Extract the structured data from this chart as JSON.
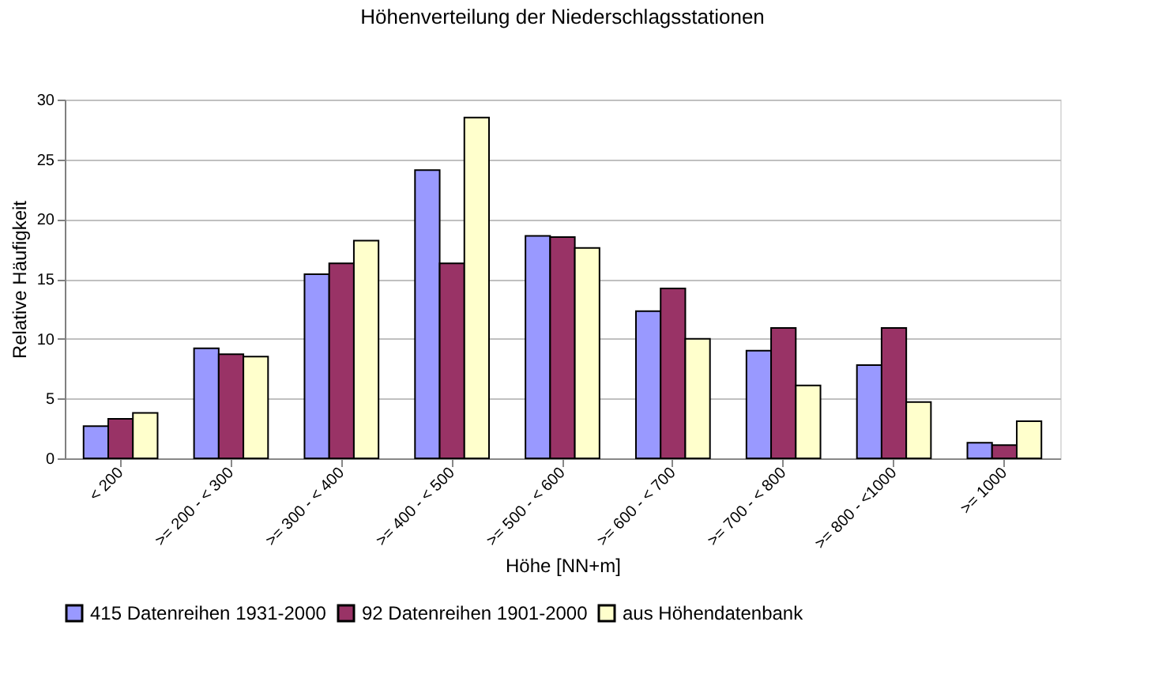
{
  "chart_data": {
    "type": "bar",
    "title": "Höhenverteilung der Niederschlagsstationen",
    "xlabel": "Höhe [NN+m]",
    "ylabel": "Relative Häufigkeit",
    "categories": [
      "< 200",
      ">= 200 - < 300",
      ">= 300 - < 400",
      ">= 400 - < 500",
      ">= 500 - < 600",
      ">= 600 - < 700",
      ">= 700 - < 800",
      ">= 800 - <1000",
      ">= 1000"
    ],
    "series": [
      {
        "name": "415 Datenreihen 1931-2000",
        "color": "#9999ff",
        "values": [
          2.7,
          9.2,
          15.4,
          24.1,
          18.6,
          12.3,
          9.0,
          7.8,
          1.3
        ]
      },
      {
        "name": "92 Datenreihen 1901-2000",
        "color": "#993366",
        "values": [
          3.3,
          8.7,
          16.3,
          16.3,
          18.5,
          14.2,
          10.9,
          10.9,
          1.1
        ]
      },
      {
        "name": "aus Höhendatenbank",
        "color": "#ffffcc",
        "values": [
          3.8,
          8.5,
          18.2,
          28.5,
          17.6,
          10.0,
          6.1,
          4.7,
          3.1
        ]
      }
    ],
    "ylim": [
      0,
      30
    ],
    "yticks": [
      0,
      5,
      10,
      15,
      20,
      25,
      30
    ],
    "grid": "y",
    "legend": "bottom"
  }
}
